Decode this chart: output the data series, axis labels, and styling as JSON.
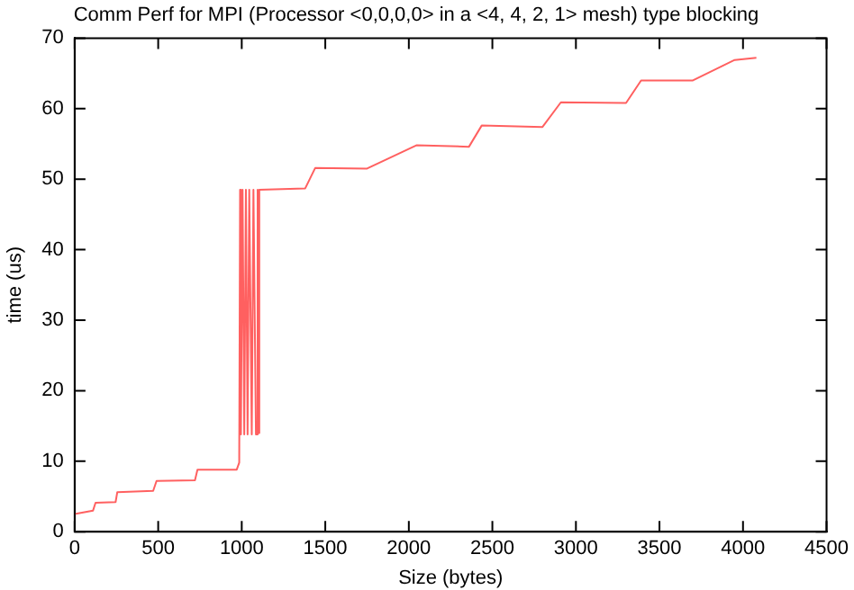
{
  "chart_data": {
    "type": "line",
    "title": "Comm Perf for MPI (Processor <0,0,0,0> in a <4, 4, 2, 1> mesh) type blocking",
    "xlabel": "Size (bytes)",
    "ylabel": "time (us)",
    "x": [
      0,
      110,
      125,
      245,
      255,
      470,
      490,
      720,
      735,
      970,
      985,
      990,
      995,
      1005,
      1015,
      1025,
      1035,
      1045,
      1060,
      1070,
      1085,
      1095,
      1100,
      1105,
      1380,
      1440,
      1750,
      2045,
      2360,
      2436,
      2800,
      2910,
      3300,
      3390,
      3700,
      3950,
      4080
    ],
    "series": [
      {
        "color": "#ff6060",
        "values": [
          2.5,
          3.0,
          4.1,
          4.2,
          5.6,
          5.8,
          7.2,
          7.3,
          8.8,
          8.8,
          9.8,
          48.5,
          13.8,
          48.5,
          13.8,
          48.5,
          13.8,
          48.5,
          13.8,
          48.5,
          13.8,
          48.5,
          14,
          48.5,
          48.7,
          51.6,
          51.5,
          54.8,
          54.6,
          57.6,
          57.4,
          60.9,
          60.8,
          64,
          64,
          66.9,
          67.2
        ]
      }
    ],
    "xlim": [
      0,
      4500
    ],
    "xticks": [
      0,
      500,
      1000,
      1500,
      2000,
      2500,
      3000,
      3500,
      4000,
      4500
    ],
    "ylim": [
      0,
      70
    ],
    "yticks": [
      0,
      10,
      20,
      30,
      40,
      50,
      60,
      70
    ],
    "grid": false,
    "legend": false,
    "marker": "none",
    "line_style": "solid"
  }
}
